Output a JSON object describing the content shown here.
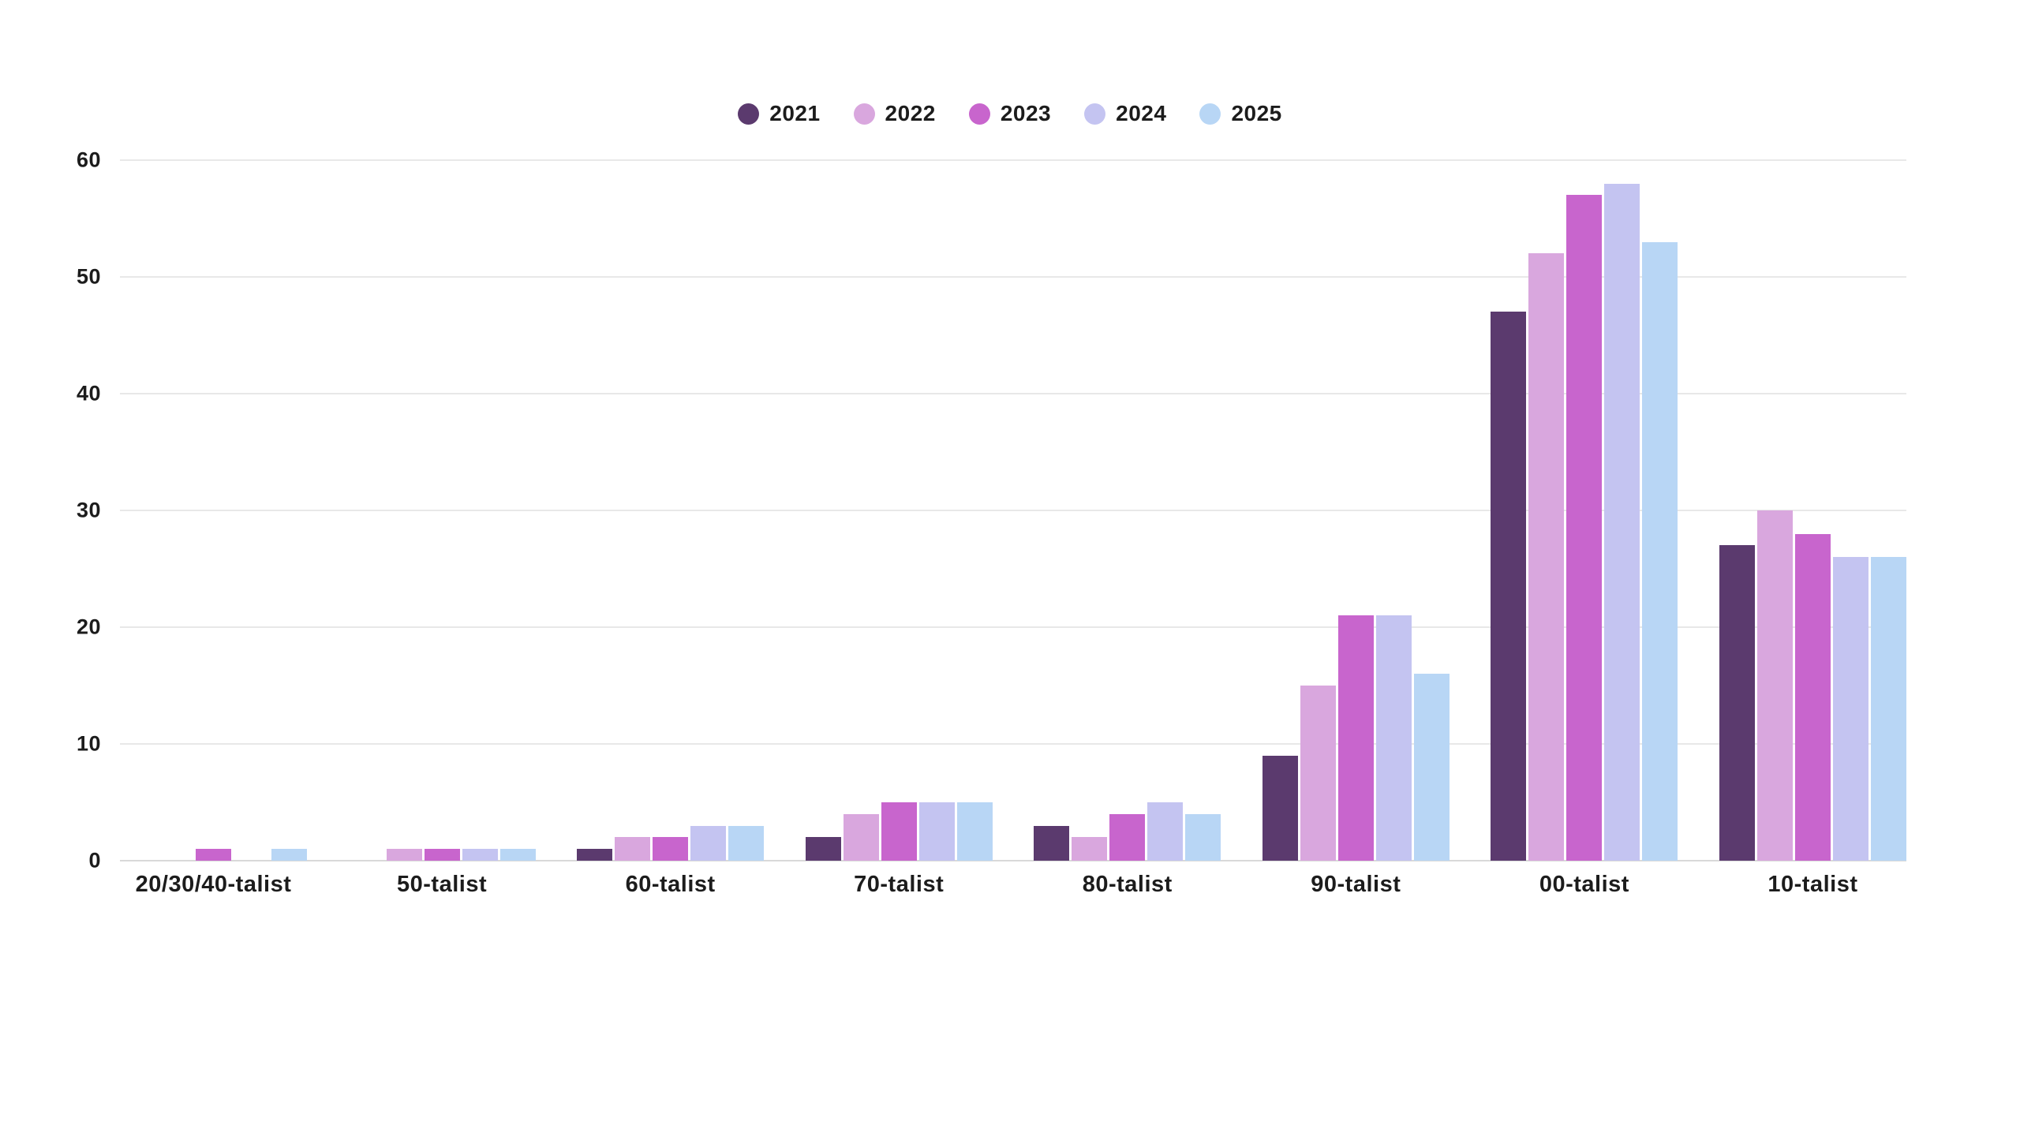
{
  "chart_data": {
    "type": "bar",
    "title": "",
    "xlabel": "",
    "ylabel": "",
    "categories": [
      "20/30/40-talist",
      "50-talist",
      "60-talist",
      "70-talist",
      "80-talist",
      "90-talist",
      "00-talist",
      "10-talist"
    ],
    "series": [
      {
        "name": "2021",
        "color": "#5b3a6e",
        "values": [
          0,
          0,
          1,
          2,
          3,
          9,
          47,
          27
        ]
      },
      {
        "name": "2022",
        "color": "#d9a7de",
        "values": [
          0,
          1,
          2,
          4,
          2,
          15,
          52,
          30
        ]
      },
      {
        "name": "2023",
        "color": "#c865cd",
        "values": [
          1,
          1,
          2,
          5,
          4,
          21,
          57,
          28
        ]
      },
      {
        "name": "2024",
        "color": "#c4c4f1",
        "values": [
          0,
          1,
          3,
          5,
          5,
          21,
          58,
          26
        ]
      },
      {
        "name": "2025",
        "color": "#b8d6f5",
        "values": [
          1,
          1,
          3,
          5,
          4,
          16,
          53,
          26
        ]
      }
    ],
    "ylim": [
      0,
      60
    ],
    "yticks": [
      0,
      10,
      20,
      30,
      40,
      50,
      60
    ],
    "grid": true,
    "legend_position": "top-center"
  },
  "colors": {
    "background": "#ffffff",
    "gridline": "#e8e8e8",
    "baseline": "#d9d9d9",
    "text": "#1c1c1c"
  }
}
